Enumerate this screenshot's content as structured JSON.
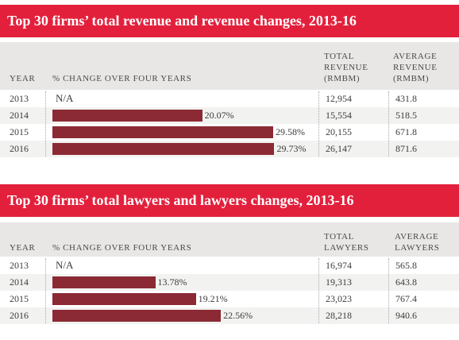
{
  "colors": {
    "banner": "#e3203c",
    "bar": "#8b2a34",
    "header_bg": "#e8e7e6"
  },
  "chart_data": [
    {
      "type": "table",
      "title": "Top 30 firms’ total revenue and revenue changes, 2013-16",
      "columns": [
        "YEAR",
        "% CHANGE OVER FOUR YEARS",
        "TOTAL REVENUE (RMBM)",
        "AVERAGE REVENUE (RMBM)"
      ],
      "col_headers": {
        "year": "YEAR",
        "change": "% CHANGE OVER FOUR YEARS",
        "total": [
          "TOTAL",
          "REVENUE",
          "(RMBM)"
        ],
        "average": [
          "AVERAGE",
          "REVENUE",
          "(RMBM)"
        ]
      },
      "xlim": [
        0,
        30
      ],
      "rows": [
        {
          "year": "2013",
          "change": null,
          "change_label": "N/A",
          "total": "12,954",
          "average": "431.8"
        },
        {
          "year": "2014",
          "change": 20.07,
          "change_label": "20.07%",
          "total": "15,554",
          "average": "518.5"
        },
        {
          "year": "2015",
          "change": 29.58,
          "change_label": "29.58%",
          "total": "20,155",
          "average": "671.8"
        },
        {
          "year": "2016",
          "change": 29.73,
          "change_label": "29.73%",
          "total": "26,147",
          "average": "871.6"
        }
      ]
    },
    {
      "type": "table",
      "title": "Top 30 firms’ total lawyers and lawyers changes, 2013-16",
      "columns": [
        "YEAR",
        "% CHANGE OVER FOUR YEARS",
        "TOTAL LAWYERS",
        "AVERAGE LAWYERS"
      ],
      "col_headers": {
        "year": "YEAR",
        "change": "% CHANGE OVER FOUR YEARS",
        "total": [
          "TOTAL",
          "LAWYERS"
        ],
        "average": [
          "AVERAGE",
          "LAWYERS"
        ]
      },
      "xlim": [
        0,
        30
      ],
      "rows": [
        {
          "year": "2013",
          "change": null,
          "change_label": "N/A",
          "total": "16,974",
          "average": "565.8"
        },
        {
          "year": "2014",
          "change": 13.78,
          "change_label": "13.78%",
          "total": "19,313",
          "average": "643.8"
        },
        {
          "year": "2015",
          "change": 19.21,
          "change_label": "19.21%",
          "total": "23,023",
          "average": "767.4"
        },
        {
          "year": "2016",
          "change": 22.56,
          "change_label": "22.56%",
          "total": "28,218",
          "average": "940.6"
        }
      ]
    }
  ]
}
